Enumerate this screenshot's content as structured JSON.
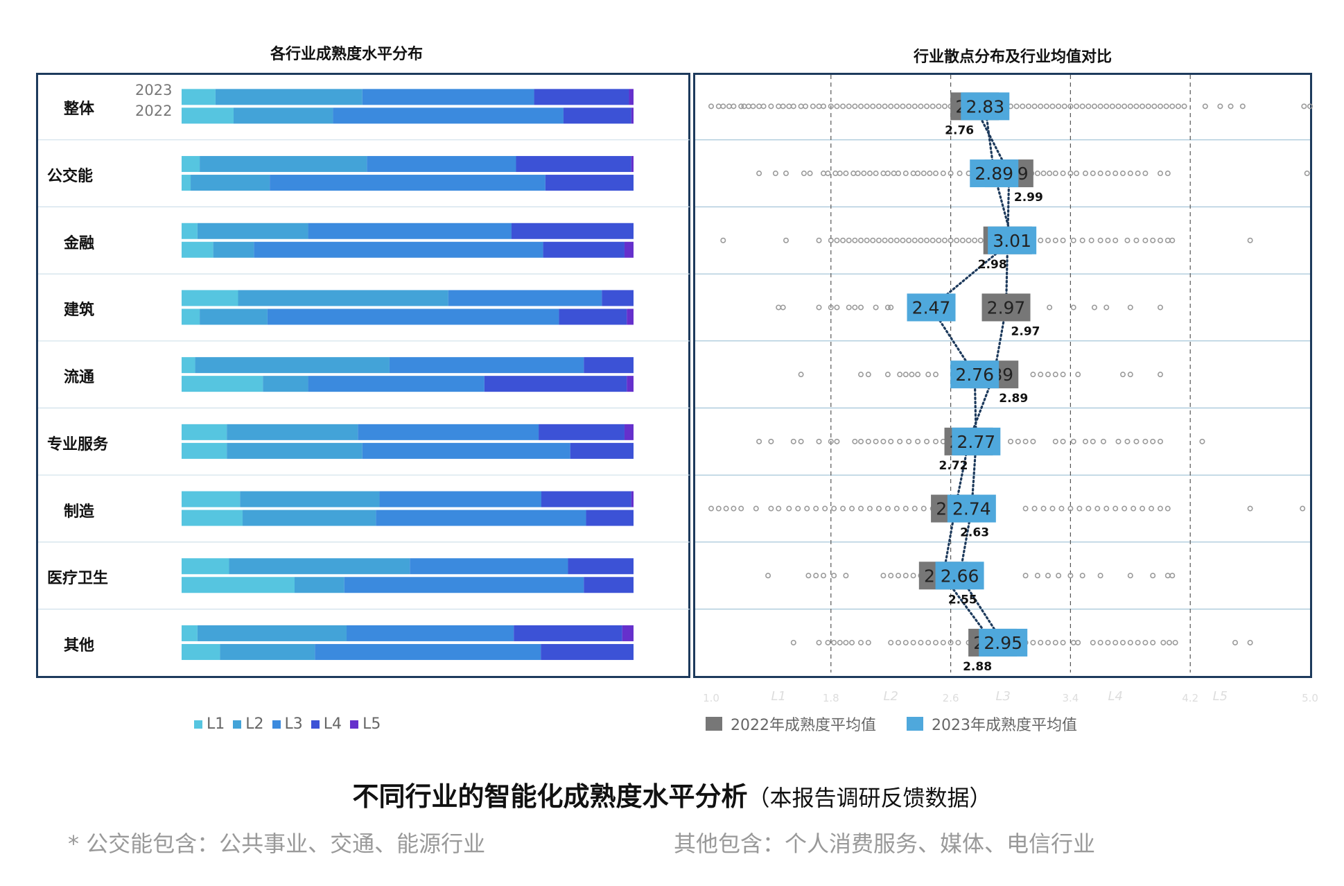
{
  "left_title": "各行业成熟度水平分布",
  "right_title": "行业散点分布及行业均值对比",
  "year_labels": [
    "2023",
    "2022"
  ],
  "industries": [
    "整体",
    "公交能",
    "金融",
    "建筑",
    "流通",
    "专业服务",
    "制造",
    "医疗卫生",
    "其他"
  ],
  "level_colors": [
    "#56c5e0",
    "#43a3d8",
    "#3b8ade",
    "#3c52d6",
    "#6530cc"
  ],
  "chart_data": [
    {
      "type": "bar",
      "stacked": true,
      "orientation": "horizontal",
      "title": "各行业成熟度水平分布",
      "categories": [
        "整体",
        "公交能",
        "金融",
        "建筑",
        "流通",
        "专业服务",
        "制造",
        "医疗卫生",
        "其他"
      ],
      "legend": [
        "L1",
        "L2",
        "L3",
        "L4",
        "L5"
      ],
      "legend_position": "bottom",
      "series_2023": [
        [
          7.5,
          32.5,
          38,
          21,
          1
        ],
        [
          4,
          37,
          33,
          25.5,
          0.5
        ],
        [
          3.5,
          24.5,
          45,
          27,
          0
        ],
        [
          12.5,
          46.5,
          34,
          7,
          0
        ],
        [
          3,
          43,
          43,
          11,
          0
        ],
        [
          10,
          29,
          40,
          19,
          2
        ],
        [
          13,
          31,
          36,
          20,
          0.5
        ],
        [
          10.5,
          40,
          35,
          14.5,
          0
        ],
        [
          3.5,
          33,
          37,
          24,
          2.5
        ]
      ],
      "series_2022": [
        [
          11.5,
          22,
          51,
          15,
          0.5
        ],
        [
          2,
          17.5,
          61,
          19.5,
          0
        ],
        [
          7,
          9,
          64,
          18,
          2
        ],
        [
          4,
          15,
          64.5,
          15,
          1.5
        ],
        [
          18,
          10,
          39,
          31.5,
          1.5
        ],
        [
          10,
          30,
          46,
          14,
          0
        ],
        [
          13.5,
          29.5,
          46.5,
          10.5,
          0
        ],
        [
          25,
          11,
          53,
          11,
          0
        ],
        [
          8.5,
          21,
          50,
          20.5,
          0
        ]
      ]
    },
    {
      "type": "scatter",
      "title": "行业散点分布及行业均值对比",
      "x_ticks": [
        "1.0",
        "1.8",
        "2.6",
        "3.4",
        "4.2",
        "5.0"
      ],
      "x_ticks_values": [
        1.0,
        1.8,
        2.6,
        3.4,
        4.2,
        5.0
      ],
      "level_ticks": [
        "L1",
        "L2",
        "L3",
        "L4",
        "L5"
      ],
      "level_ticks_values": [
        1.45,
        2.2,
        2.95,
        3.7,
        4.4
      ],
      "xlim": [
        1.0,
        5.0
      ],
      "dashed_lines": [
        1.8,
        2.6,
        3.4,
        4.2
      ],
      "legend": [
        "2022年成熟度平均值",
        "2023年成熟度平均值"
      ],
      "legend_position": "bottom",
      "colors": {
        "avg_2022": "#777777",
        "avg_2023": "#4fa8dc",
        "points": "#9a9a9a",
        "trend": "#1d3a5c"
      },
      "categories": [
        "整体",
        "公交能",
        "金融",
        "建筑",
        "流通",
        "专业服务",
        "制造",
        "医疗卫生",
        "其他"
      ],
      "avg_2022": [
        2.76,
        2.99,
        2.98,
        2.97,
        2.89,
        2.72,
        2.63,
        2.55,
        2.88
      ],
      "avg_2023": [
        2.83,
        2.89,
        3.01,
        2.47,
        2.76,
        2.77,
        2.74,
        2.66,
        2.95
      ],
      "avg_2022_labels": [
        "2.76",
        "2.99",
        "2.98",
        "2.97",
        "2.89",
        "2.72",
        "2.63",
        "2.55",
        "2.88"
      ],
      "avg_2023_labels": [
        "2.83",
        "2.89",
        "3.01",
        "2.47",
        "2.76",
        "2.77",
        "2.74",
        "2.66",
        "2.95"
      ],
      "points": [
        [
          1.0,
          1.05,
          1.08,
          1.12,
          1.15,
          1.2,
          1.22,
          1.25,
          1.28,
          1.32,
          1.35,
          1.4,
          1.45,
          1.48,
          1.52,
          1.55,
          1.6,
          1.63,
          1.68,
          1.72,
          1.75,
          1.8,
          1.84,
          1.88,
          1.92,
          1.96,
          2.0,
          2.04,
          2.08,
          2.12,
          2.16,
          2.2,
          2.24,
          2.28,
          2.32,
          2.36,
          2.4,
          2.44,
          2.48,
          2.52,
          2.56,
          2.6,
          2.64,
          2.68,
          2.72,
          2.76,
          2.8,
          2.84,
          2.88,
          2.92,
          2.96,
          3.0,
          3.04,
          3.08,
          3.12,
          3.16,
          3.2,
          3.24,
          3.28,
          3.32,
          3.36,
          3.4,
          3.44,
          3.48,
          3.52,
          3.56,
          3.6,
          3.64,
          3.68,
          3.72,
          3.76,
          3.8,
          3.84,
          3.88,
          3.92,
          3.96,
          4.0,
          4.04,
          4.08,
          4.12,
          4.16,
          4.3,
          4.4,
          4.47,
          4.55,
          4.96,
          5.0
        ],
        [
          1.32,
          1.43,
          1.5,
          1.62,
          1.66,
          1.75,
          1.78,
          1.83,
          1.86,
          1.9,
          1.95,
          1.98,
          2.02,
          2.06,
          2.1,
          2.15,
          2.18,
          2.22,
          2.25,
          2.3,
          2.35,
          2.38,
          2.42,
          2.46,
          2.5,
          2.55,
          2.6,
          2.66,
          2.72,
          2.78,
          3.05,
          3.1,
          3.14,
          3.18,
          3.22,
          3.26,
          3.3,
          3.35,
          3.4,
          3.44,
          3.5,
          3.55,
          3.6,
          3.65,
          3.7,
          3.75,
          3.8,
          3.85,
          3.9,
          4.0,
          4.05,
          4.98
        ],
        [
          1.08,
          1.5,
          1.72,
          1.8,
          1.84,
          1.88,
          1.92,
          1.96,
          2.0,
          2.04,
          2.08,
          2.12,
          2.16,
          2.2,
          2.24,
          2.28,
          2.32,
          2.36,
          2.4,
          2.44,
          2.48,
          2.52,
          2.56,
          2.6,
          2.64,
          2.68,
          2.72,
          2.76,
          2.8,
          2.84,
          2.88,
          3.2,
          3.25,
          3.3,
          3.35,
          3.42,
          3.48,
          3.54,
          3.6,
          3.65,
          3.7,
          3.78,
          3.84,
          3.9,
          3.95,
          4.0,
          4.05,
          4.08,
          4.6
        ],
        [
          1.45,
          1.48,
          1.72,
          1.8,
          1.84,
          1.92,
          1.96,
          2.0,
          2.1,
          2.18,
          2.2,
          3.26,
          3.42,
          3.56,
          3.64,
          3.8,
          4.0
        ],
        [
          1.6,
          2.0,
          2.05,
          2.18,
          2.26,
          2.3,
          2.34,
          2.38,
          2.45,
          2.5,
          3.15,
          3.2,
          3.25,
          3.3,
          3.35,
          3.45,
          3.75,
          3.8,
          4.0
        ],
        [
          1.32,
          1.4,
          1.55,
          1.6,
          1.72,
          1.8,
          1.84,
          1.96,
          2.0,
          2.05,
          2.1,
          2.15,
          2.2,
          2.26,
          2.32,
          2.38,
          2.44,
          2.5,
          2.55,
          2.6,
          2.64,
          3.0,
          3.05,
          3.1,
          3.15,
          3.3,
          3.35,
          3.42,
          3.5,
          3.55,
          3.62,
          3.72,
          3.78,
          3.84,
          3.9,
          3.95,
          4.0,
          4.28
        ],
        [
          1.0,
          1.05,
          1.1,
          1.15,
          1.2,
          1.3,
          1.4,
          1.45,
          1.52,
          1.58,
          1.64,
          1.7,
          1.76,
          1.82,
          1.88,
          1.94,
          2.0,
          2.06,
          2.12,
          2.18,
          2.24,
          2.3,
          2.36,
          2.42,
          2.48,
          2.54,
          3.1,
          3.16,
          3.22,
          3.28,
          3.34,
          3.4,
          3.46,
          3.52,
          3.58,
          3.64,
          3.7,
          3.76,
          3.82,
          3.88,
          3.94,
          4.0,
          4.05,
          4.6,
          4.95
        ],
        [
          1.38,
          1.65,
          1.7,
          1.75,
          1.82,
          1.9,
          2.15,
          2.2,
          2.25,
          2.3,
          2.35,
          2.4,
          3.1,
          3.18,
          3.25,
          3.32,
          3.4,
          3.48,
          3.6,
          3.8,
          3.95,
          4.05,
          4.08
        ],
        [
          1.55,
          1.72,
          1.78,
          1.82,
          1.86,
          1.9,
          1.94,
          2.0,
          2.05,
          2.2,
          2.25,
          2.3,
          2.35,
          2.4,
          2.45,
          2.5,
          2.55,
          2.6,
          2.65,
          2.72,
          2.78,
          3.1,
          3.15,
          3.2,
          3.25,
          3.3,
          3.35,
          3.42,
          3.45,
          3.55,
          3.6,
          3.65,
          3.7,
          3.75,
          3.8,
          3.85,
          3.9,
          3.95,
          4.02,
          4.06,
          4.1,
          4.5,
          4.6
        ]
      ]
    }
  ],
  "legend_left": [
    "L1",
    "L2",
    "L3",
    "L4",
    "L5"
  ],
  "legend_right": [
    "2022年成熟度平均值",
    "2023年成熟度平均值"
  ],
  "main_title_bold": "不同行业的智能化成熟度水平分析",
  "main_title_note": "（本报告调研反馈数据）",
  "note_left": "* 公交能包含：公共事业、交通、能源行业",
  "note_right": "其他包含：个人消费服务、媒体、电信行业"
}
